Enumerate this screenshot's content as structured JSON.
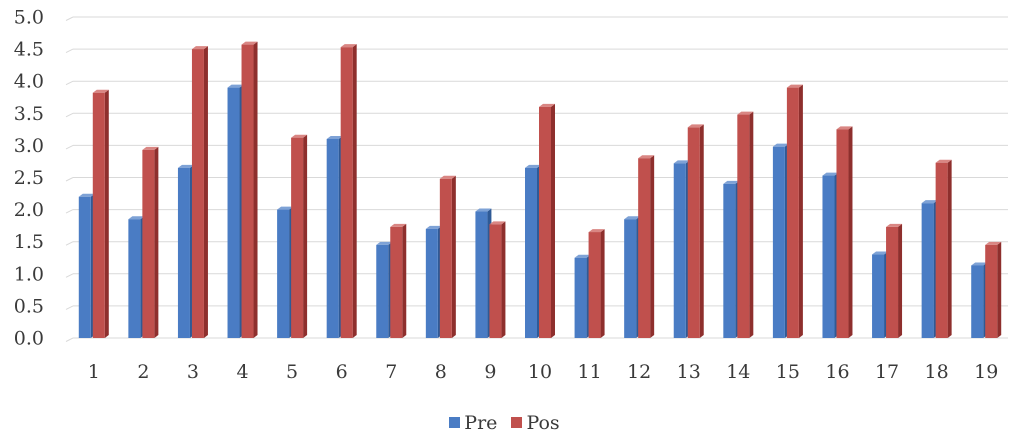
{
  "chart_data": {
    "type": "bar",
    "categories": [
      "1",
      "2",
      "3",
      "4",
      "5",
      "6",
      "7",
      "8",
      "9",
      "10",
      "11",
      "12",
      "13",
      "14",
      "15",
      "16",
      "17",
      "18",
      "19"
    ],
    "series": [
      {
        "name": "Pre",
        "color": "#4a7cc4",
        "side_color": "#2f5a96",
        "top_color": "#7ea2d6",
        "values": [
          2.2,
          1.85,
          2.65,
          3.9,
          2.0,
          3.1,
          1.45,
          1.7,
          1.97,
          2.65,
          1.25,
          1.85,
          2.72,
          2.4,
          2.98,
          2.53,
          1.3,
          2.1,
          1.13
        ]
      },
      {
        "name": "Pos",
        "color": "#c0504d",
        "side_color": "#8e2f2d",
        "top_color": "#d98683",
        "values": [
          3.82,
          2.93,
          4.5,
          4.57,
          3.12,
          4.53,
          1.73,
          2.48,
          1.77,
          3.6,
          1.65,
          2.8,
          3.28,
          3.48,
          3.9,
          3.25,
          1.73,
          2.73,
          1.45
        ]
      }
    ],
    "yticks": [
      "0.0",
      "0.5",
      "1.0",
      "1.5",
      "2.0",
      "2.5",
      "3.0",
      "3.5",
      "4.0",
      "4.5",
      "5.0"
    ],
    "ylim": [
      0,
      5
    ],
    "title": "",
    "xlabel": "",
    "ylabel": "",
    "grid": true,
    "legend_position": "bottom",
    "gridline_color": "#d9d9d9"
  }
}
